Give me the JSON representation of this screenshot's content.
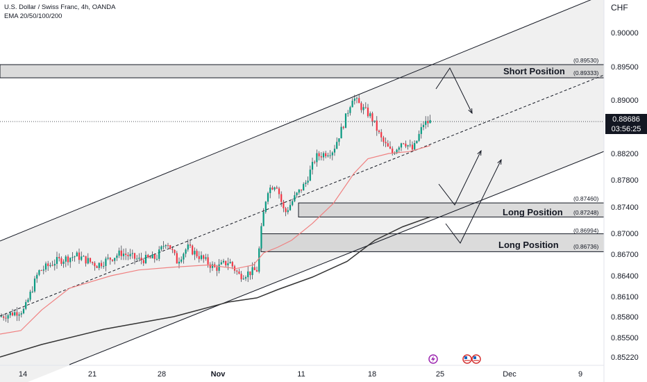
{
  "header": {
    "line1": "U.S. Dollar / Swiss Franc, 4h, OANDA",
    "line2": "EMA 20/50/100/200"
  },
  "currency": "CHF",
  "price_badge": {
    "price": "0.88686",
    "countdown": "03:56:25"
  },
  "zones": [
    {
      "label": "Short Position",
      "upper": "(0.89530)",
      "lower": "(0.89333)"
    },
    {
      "label": "Long Position",
      "upper": "(0.87460)",
      "lower": "(0.87248)"
    },
    {
      "label": "Long Position",
      "upper": "(0.86994)",
      "lower": "(0.86736)"
    }
  ],
  "colors": {
    "up": "#089981",
    "down": "#f23645",
    "ema_short": "#f08080",
    "ema_long": "#333333",
    "zone_fill": "#cfcfcf",
    "channel_fill": "#f0f0f0"
  },
  "icons": [
    "lightning-event-icon",
    "us-flag-icon",
    "us-flag-icon"
  ],
  "chart_data": {
    "type": "candlestick",
    "y_axis": {
      "ticks": [
        "0.90000",
        "0.89500",
        "0.89000",
        "0.88600",
        "0.88200",
        "0.87800",
        "0.87400",
        "0.87000",
        "0.86700",
        "0.86400",
        "0.86100",
        "0.85800",
        "0.85500",
        "0.85220"
      ],
      "scale": "log"
    },
    "x_axis": {
      "ticks": [
        "14",
        "21",
        "28",
        "Nov",
        "11",
        "18",
        "25",
        "Dec",
        "9"
      ]
    },
    "ema_short_path": [
      [
        0,
        0.8555
      ],
      [
        30,
        0.856
      ],
      [
        60,
        0.859
      ],
      [
        100,
        0.8622
      ],
      [
        160,
        0.864
      ],
      [
        200,
        0.8648
      ],
      [
        250,
        0.8652
      ],
      [
        300,
        0.8655
      ],
      [
        340,
        0.865
      ],
      [
        365,
        0.8655
      ],
      [
        380,
        0.8672
      ],
      [
        400,
        0.868
      ],
      [
        420,
        0.869
      ],
      [
        450,
        0.8715
      ],
      [
        480,
        0.8745
      ],
      [
        510,
        0.879
      ],
      [
        530,
        0.8812
      ],
      [
        560,
        0.882
      ],
      [
        590,
        0.8823
      ],
      [
        620,
        0.8832
      ]
    ],
    "ema_long_path": [
      [
        0,
        0.8522
      ],
      [
        60,
        0.854
      ],
      [
        150,
        0.8562
      ],
      [
        250,
        0.858
      ],
      [
        330,
        0.8602
      ],
      [
        370,
        0.8608
      ],
      [
        400,
        0.862
      ],
      [
        450,
        0.8638
      ],
      [
        500,
        0.866
      ],
      [
        540,
        0.869
      ],
      [
        580,
        0.871
      ],
      [
        620,
        0.8725
      ]
    ]
  }
}
